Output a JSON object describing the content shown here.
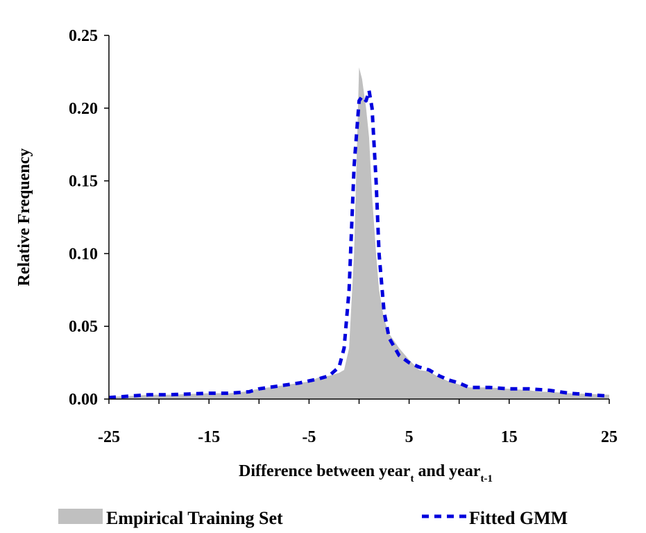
{
  "chart_data": {
    "type": "area",
    "xlabel": {
      "text": "Difference between year",
      "sub1": "t",
      "mid": " and year",
      "sub2": "t-1"
    },
    "ylabel": "Relative Frequency",
    "xlim": [
      -25,
      25
    ],
    "ylim": [
      0,
      0.25
    ],
    "x_ticks": [
      -25,
      -15,
      -5,
      5,
      15,
      25
    ],
    "x_minor_ticks": [
      -20,
      -10,
      0,
      10,
      20
    ],
    "y_ticks": [
      "0.00",
      "0.05",
      "0.10",
      "0.15",
      "0.20",
      "0.25"
    ],
    "legend_position": "bottom",
    "series": [
      {
        "name": "Empirical Training Set",
        "style": "filled-area",
        "color": "#c0c0c0",
        "x": [
          -25,
          -23,
          -21,
          -19,
          -17,
          -15,
          -13,
          -11.5,
          -10,
          -8,
          -6,
          -5,
          -4,
          -3,
          -2,
          -1.5,
          -1,
          -0.5,
          0,
          0.3,
          0.7,
          1,
          1.3,
          1.7,
          2,
          2.5,
          3,
          3.5,
          4,
          5,
          6,
          7,
          8,
          9,
          10,
          11,
          13,
          15,
          17,
          18,
          19,
          21,
          23,
          25
        ],
        "y": [
          0.0015,
          0.002,
          0.003,
          0.003,
          0.0035,
          0.004,
          0.004,
          0.005,
          0.007,
          0.009,
          0.011,
          0.012,
          0.015,
          0.016,
          0.018,
          0.02,
          0.035,
          0.1,
          0.228,
          0.22,
          0.2,
          0.18,
          0.14,
          0.1,
          0.075,
          0.055,
          0.045,
          0.04,
          0.035,
          0.027,
          0.02,
          0.019,
          0.015,
          0.012,
          0.01,
          0.008,
          0.008,
          0.007,
          0.006,
          0.005,
          0.005,
          0.004,
          0.0035,
          0.003
        ]
      },
      {
        "name": "Fitted GMM",
        "style": "dashed-line",
        "color": "#0000dd",
        "x": [
          -25,
          -23,
          -21,
          -19,
          -17,
          -15,
          -13,
          -11,
          -10,
          -8,
          -6,
          -4,
          -3,
          -2,
          -1.5,
          -1,
          -0.5,
          0,
          0.3,
          0.7,
          1,
          1.3,
          1.7,
          2,
          2.5,
          3,
          4,
          5,
          6,
          7,
          8,
          9,
          10,
          11,
          13,
          15,
          17,
          19,
          21,
          23,
          25
        ],
        "y": [
          0.001,
          0.002,
          0.003,
          0.003,
          0.0035,
          0.004,
          0.004,
          0.005,
          0.007,
          0.009,
          0.011,
          0.014,
          0.016,
          0.022,
          0.035,
          0.075,
          0.16,
          0.205,
          0.208,
          0.205,
          0.212,
          0.2,
          0.15,
          0.1,
          0.06,
          0.042,
          0.03,
          0.025,
          0.022,
          0.02,
          0.016,
          0.013,
          0.011,
          0.008,
          0.008,
          0.007,
          0.007,
          0.006,
          0.004,
          0.003,
          0.002
        ]
      }
    ]
  }
}
